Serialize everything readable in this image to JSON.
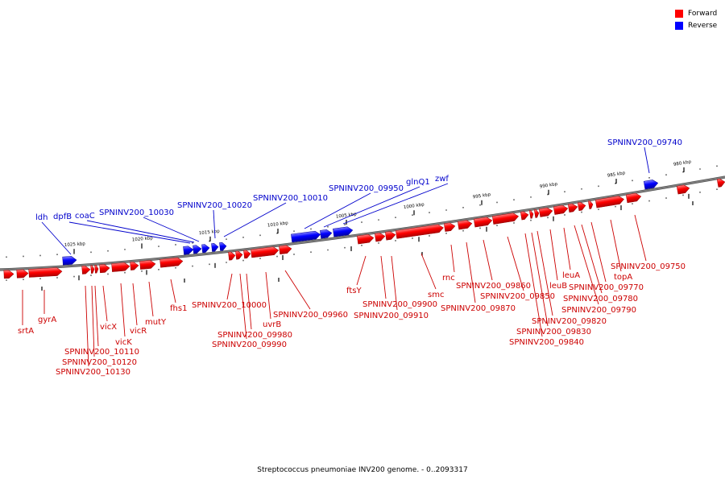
{
  "legend": {
    "forward": {
      "label": "Forward",
      "color": "#ff0000"
    },
    "reverse": {
      "label": "Reverse",
      "color": "#0000ff"
    }
  },
  "caption": "Streptococcus pneumoniae INV200 genome. - 0..2093317",
  "colors": {
    "forward": "#ff0000",
    "reverse": "#0000ff",
    "backbone": "#7f7f7f",
    "forward_label": "#cc0000",
    "reverse_label": "#0000cc"
  },
  "ticks": [
    {
      "label": "1025 kbp",
      "pos_kbp": 1025
    },
    {
      "label": "1020 kbp",
      "pos_kbp": 1020
    },
    {
      "label": "1015 kbp",
      "pos_kbp": 1015
    },
    {
      "label": "1010 kbp",
      "pos_kbp": 1010
    },
    {
      "label": "1005 kbp",
      "pos_kbp": 1005
    },
    {
      "label": "1000 kbp",
      "pos_kbp": 1000
    },
    {
      "label": "995 kbp",
      "pos_kbp": 995
    },
    {
      "label": "990 kbp",
      "pos_kbp": 990
    },
    {
      "label": "985 kbp",
      "pos_kbp": 985
    },
    {
      "label": "980 kbp",
      "pos_kbp": 980
    }
  ],
  "reverse_genes": [
    {
      "label": "ldh"
    },
    {
      "label": "dpfB"
    },
    {
      "label": "coaC"
    },
    {
      "label": "SPNINV200_10030"
    },
    {
      "label": "SPNINV200_10020"
    },
    {
      "label": "SPNINV200_10010"
    },
    {
      "label": "SPNINV200_09950"
    },
    {
      "label": "glnQ1"
    },
    {
      "label": "zwf"
    },
    {
      "label": "SPNINV200_09740"
    }
  ],
  "forward_genes": [
    {
      "label": "srtA"
    },
    {
      "label": "gyrA"
    },
    {
      "label": "SPNINV200_10130"
    },
    {
      "label": "SPNINV200_10120"
    },
    {
      "label": "SPNINV200_10110"
    },
    {
      "label": "vicX"
    },
    {
      "label": "vicK"
    },
    {
      "label": "vicR"
    },
    {
      "label": "mutY"
    },
    {
      "label": "fhs1"
    },
    {
      "label": "SPNINV200_10000"
    },
    {
      "label": "SPNINV200_09990"
    },
    {
      "label": "SPNINV200_09980"
    },
    {
      "label": "uvrB"
    },
    {
      "label": "SPNINV200_09960"
    },
    {
      "label": "ftsY"
    },
    {
      "label": "SPNINV200_09900"
    },
    {
      "label": "SPNINV200_09910"
    },
    {
      "label": "smc"
    },
    {
      "label": "rnc"
    },
    {
      "label": "SPNINV200_09870"
    },
    {
      "label": "SPNINV200_09860"
    },
    {
      "label": "SPNINV200_09850"
    },
    {
      "label": "SPNINV200_09840"
    },
    {
      "label": "SPNINV200_09830"
    },
    {
      "label": "SPNINV200_09820"
    },
    {
      "label": "leuB"
    },
    {
      "label": "leuA"
    },
    {
      "label": "SPNINV200_09790"
    },
    {
      "label": "SPNINV200_09780"
    },
    {
      "label": "SPNINV200_09770"
    },
    {
      "label": "topA"
    },
    {
      "label": "SPNINV200_09750"
    }
  ]
}
